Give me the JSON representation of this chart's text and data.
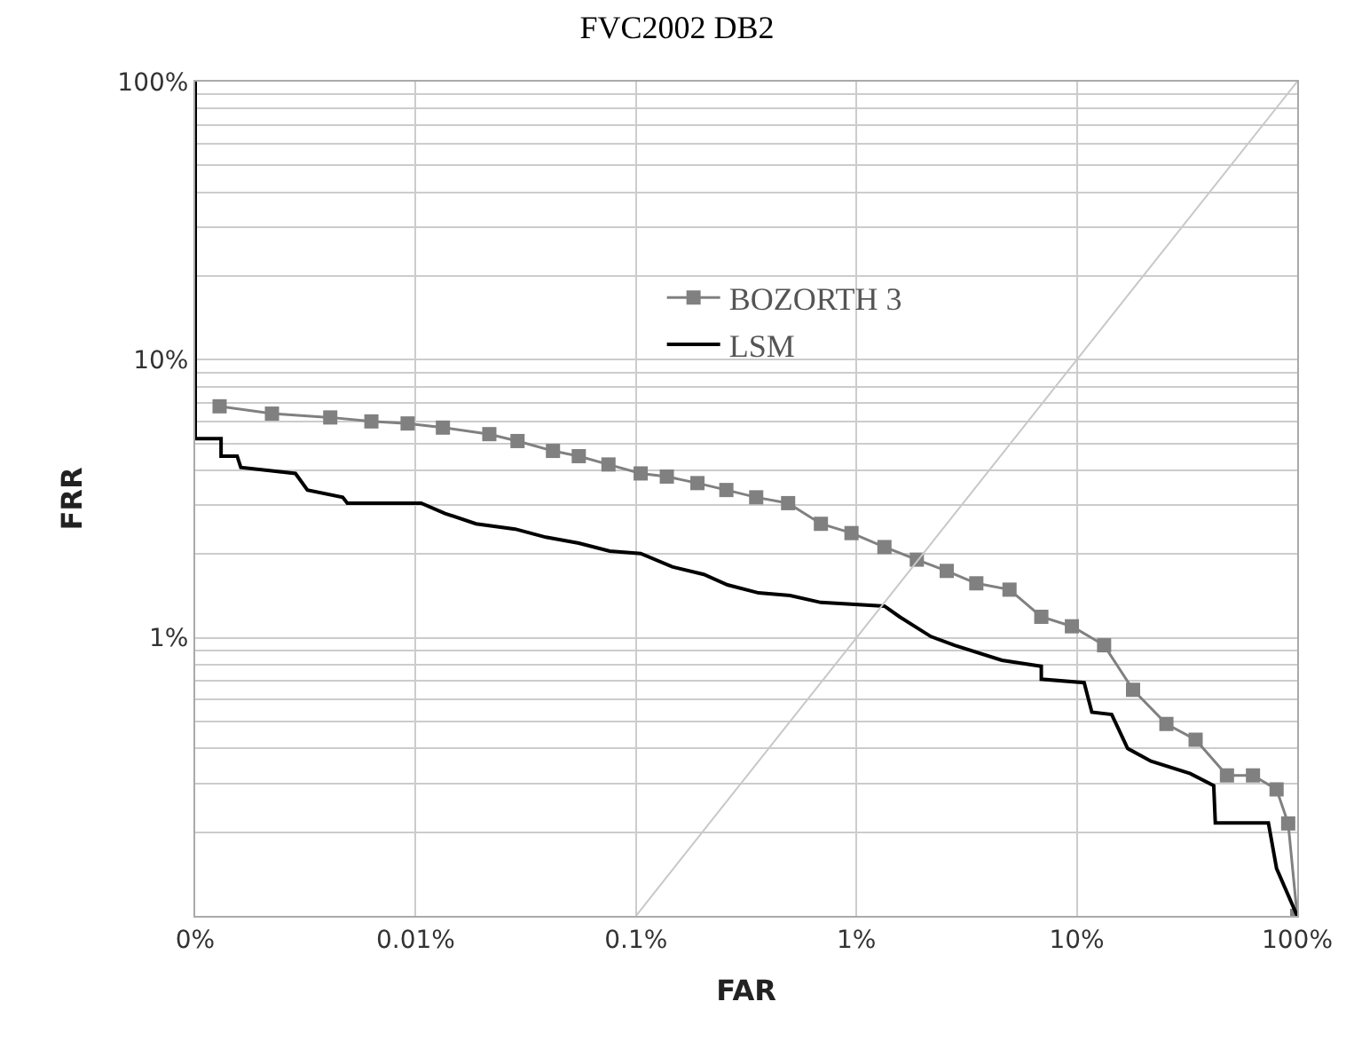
{
  "chart_data": {
    "type": "line",
    "title": "FVC2002 DB2",
    "xlabel": "FAR",
    "ylabel": "FRR",
    "log": "xy",
    "grid": true,
    "legend": "top",
    "xlim": [
      0.001,
      100
    ],
    "ylim": [
      0.1,
      100
    ],
    "xticks": [
      {
        "value": 0.001,
        "label": "0%"
      },
      {
        "value": 0.01,
        "label": "0.01%"
      },
      {
        "value": 0.1,
        "label": "0.1%"
      },
      {
        "value": 1,
        "label": "1%"
      },
      {
        "value": 10,
        "label": "10%"
      },
      {
        "value": 100,
        "label": "100%"
      }
    ],
    "yticks": [
      {
        "value": 0.1,
        "label": null
      },
      {
        "value": 0.2,
        "label": null
      },
      {
        "value": 0.3,
        "label": null
      },
      {
        "value": 0.4,
        "label": null
      },
      {
        "value": 0.5,
        "label": null
      },
      {
        "value": 0.6,
        "label": null
      },
      {
        "value": 0.7,
        "label": null
      },
      {
        "value": 0.8,
        "label": null
      },
      {
        "value": 0.9,
        "label": null
      },
      {
        "value": 1,
        "label": "1%"
      },
      {
        "value": 2,
        "label": null
      },
      {
        "value": 3,
        "label": null
      },
      {
        "value": 4,
        "label": null
      },
      {
        "value": 5,
        "label": null
      },
      {
        "value": 6,
        "label": null
      },
      {
        "value": 7,
        "label": null
      },
      {
        "value": 8,
        "label": null
      },
      {
        "value": 9,
        "label": null
      },
      {
        "value": 10,
        "label": "10%"
      },
      {
        "value": 20,
        "label": null
      },
      {
        "value": 30,
        "label": null
      },
      {
        "value": 40,
        "label": null
      },
      {
        "value": 50,
        "label": null
      },
      {
        "value": 60,
        "label": null
      },
      {
        "value": 70,
        "label": null
      },
      {
        "value": 80,
        "label": null
      },
      {
        "value": 90,
        "label": null
      },
      {
        "value": 100,
        "label": "100%"
      }
    ],
    "series": [
      {
        "name": "BOZORTH 3",
        "color": "#808080",
        "marker": "square",
        "x": [
          0.00129,
          0.00223,
          0.0041,
          0.0063,
          0.0092,
          0.0133,
          0.0216,
          0.029,
          0.042,
          0.055,
          0.075,
          0.105,
          0.138,
          0.19,
          0.257,
          0.351,
          0.49,
          0.69,
          0.95,
          1.34,
          1.88,
          2.57,
          3.5,
          4.95,
          6.9,
          9.5,
          13.3,
          18,
          25.5,
          34.6,
          48,
          63,
          80.6,
          91,
          100
        ],
        "values": [
          6.8,
          6.4,
          6.2,
          6.0,
          5.9,
          5.7,
          5.4,
          5.1,
          4.7,
          4.5,
          4.2,
          3.9,
          3.8,
          3.6,
          3.4,
          3.2,
          3.05,
          2.57,
          2.38,
          2.12,
          1.91,
          1.74,
          1.57,
          1.49,
          1.19,
          1.1,
          0.94,
          0.65,
          0.49,
          0.43,
          0.32,
          0.32,
          0.285,
          0.215,
          0.1
        ]
      },
      {
        "name": "LSM",
        "color": "#000000",
        "marker": "none",
        "x": [
          0.001,
          0.001,
          0.00101,
          0.00131,
          0.00131,
          0.00155,
          0.00161,
          0.00285,
          0.00323,
          0.00467,
          0.0049,
          0.0106,
          0.0136,
          0.0188,
          0.0283,
          0.039,
          0.055,
          0.076,
          0.105,
          0.146,
          0.203,
          0.26,
          0.36,
          0.5,
          0.69,
          1.34,
          1.57,
          2.18,
          2.79,
          4.57,
          6.9,
          6.9,
          10.8,
          11.7,
          14.4,
          17,
          21.7,
          32.7,
          41.8,
          42.5,
          74,
          80.6,
          100
        ],
        "values": [
          100,
          5.2,
          5.2,
          5.2,
          4.5,
          4.5,
          4.1,
          3.9,
          3.4,
          3.2,
          3.05,
          3.05,
          2.8,
          2.57,
          2.46,
          2.3,
          2.19,
          2.05,
          2.01,
          1.8,
          1.69,
          1.55,
          1.45,
          1.42,
          1.34,
          1.3,
          1.19,
          1.01,
          0.94,
          0.83,
          0.79,
          0.71,
          0.69,
          0.54,
          0.53,
          0.4,
          0.36,
          0.325,
          0.294,
          0.216,
          0.216,
          0.148,
          0.1
        ]
      },
      {
        "color": "#c8c8c8",
        "marker": "none",
        "x": [
          0.1,
          100
        ],
        "values": [
          0.1,
          100
        ]
      }
    ]
  }
}
